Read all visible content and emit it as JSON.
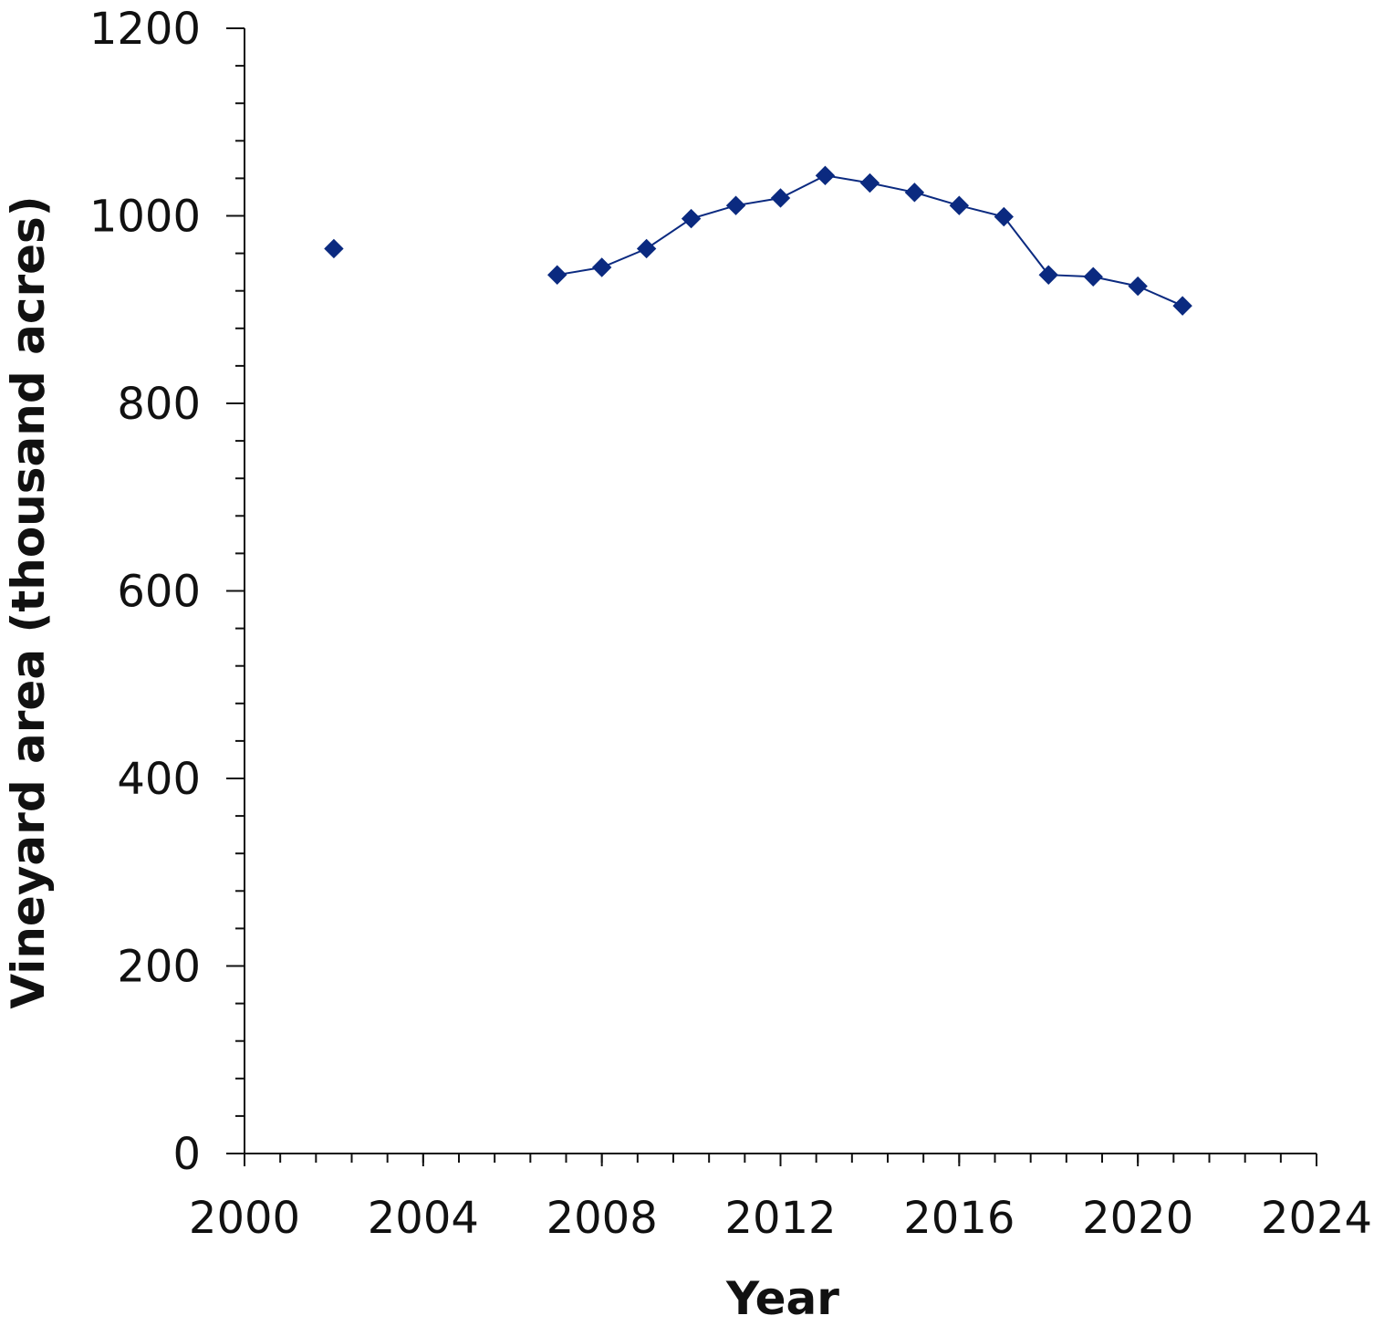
{
  "chart_data": {
    "type": "line",
    "title": "",
    "xlabel": "Year",
    "ylabel": "Vineyard area (thousand acres)",
    "xlim": [
      2000,
      2024
    ],
    "ylim": [
      0,
      1200
    ],
    "x_major_ticks": [
      2000,
      2004,
      2008,
      2012,
      2016,
      2020,
      2024
    ],
    "x_minor_step": 0.8,
    "y_major_ticks": [
      0,
      200,
      400,
      600,
      800,
      1000,
      1200
    ],
    "y_minor_step": 40,
    "x_tick_labels": [
      "2000",
      "2004",
      "2008",
      "2012",
      "2016",
      "2020",
      "2024"
    ],
    "y_tick_labels": [
      "0",
      "200",
      "400",
      "600",
      "800",
      "1000",
      "1200"
    ],
    "grid": false,
    "legend": "none",
    "color": "#0b2a80",
    "marker": "diamond",
    "series": [
      {
        "x": [
          2002,
          2007,
          2008,
          2009,
          2010,
          2011,
          2012,
          2013,
          2014,
          2015,
          2016,
          2017,
          2018,
          2019,
          2020,
          2021
        ],
        "values": [
          965,
          937,
          945,
          965,
          997,
          1011,
          1019,
          1043,
          1035,
          1025,
          1011,
          999,
          937,
          935,
          925,
          904
        ],
        "segments": [
          [
            2007,
            2008,
            2009,
            2010,
            2011,
            2012,
            2013,
            2014,
            2015,
            2016,
            2017,
            2018,
            2019,
            2020,
            2021
          ]
        ]
      }
    ]
  }
}
